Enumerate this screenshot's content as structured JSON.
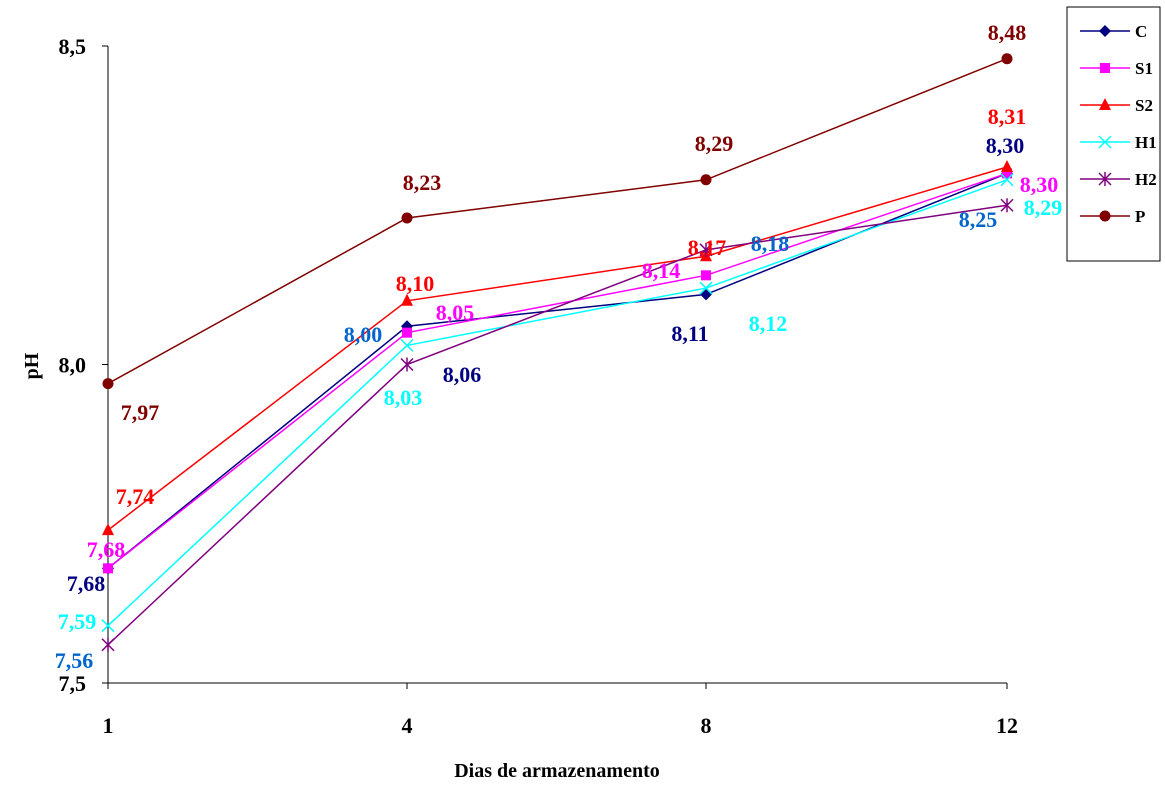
{
  "chart_data": {
    "type": "line",
    "title": "",
    "xlabel": "Dias de armazenamento",
    "ylabel": "pH",
    "categories": [
      "1",
      "4",
      "8",
      "12"
    ],
    "ylim": [
      7.5,
      8.5
    ],
    "yticks": [
      "7,5",
      "8,0",
      "8,5"
    ],
    "ytick_values": [
      7.5,
      8.0,
      8.5
    ],
    "grid": false,
    "legend_position": "top-right",
    "series": [
      {
        "name": "C",
        "color": "#000080",
        "marker": "diamond",
        "values": [
          7.68,
          8.06,
          8.11,
          8.3
        ]
      },
      {
        "name": "S1",
        "color": "#FF00FF",
        "marker": "square",
        "values": [
          7.68,
          8.05,
          8.14,
          8.3
        ]
      },
      {
        "name": "S2",
        "color": "#FF0000",
        "marker": "triangle",
        "values": [
          7.74,
          8.1,
          8.17,
          8.31
        ]
      },
      {
        "name": "H1",
        "color": "#00FFFF",
        "marker": "x",
        "values": [
          7.59,
          8.03,
          8.12,
          8.29
        ]
      },
      {
        "name": "H2",
        "color": "#800080",
        "marker": "asterisk",
        "values": [
          7.56,
          8.0,
          8.18,
          8.25
        ]
      },
      {
        "name": "P",
        "color": "#800000",
        "marker": "circle",
        "values": [
          7.97,
          8.23,
          8.29,
          8.48
        ]
      }
    ],
    "data_labels": [
      {
        "text": "7,97",
        "color": "#800000"
      },
      {
        "text": "7,74",
        "color": "#FF0000"
      },
      {
        "text": "7,68",
        "color": "#FF00FF"
      },
      {
        "text": "7,68",
        "color": "#000080"
      },
      {
        "text": "7,59",
        "color": "#00FFFF"
      },
      {
        "text": "7,56",
        "color": "#0066CC"
      },
      {
        "text": "8,23",
        "color": "#800000"
      },
      {
        "text": "8,10",
        "color": "#FF0000"
      },
      {
        "text": "8,05",
        "color": "#FF00FF"
      },
      {
        "text": "8,00",
        "color": "#0066CC"
      },
      {
        "text": "8,06",
        "color": "#000080"
      },
      {
        "text": "8,03",
        "color": "#00FFFF"
      },
      {
        "text": "8,29",
        "color": "#800000"
      },
      {
        "text": "8,17",
        "color": "#FF0000"
      },
      {
        "text": "8,18",
        "color": "#0066CC"
      },
      {
        "text": "8,14",
        "color": "#FF00FF"
      },
      {
        "text": "8,11",
        "color": "#000080"
      },
      {
        "text": "8,12",
        "color": "#00FFFF"
      },
      {
        "text": "8,48",
        "color": "#800000"
      },
      {
        "text": "8,31",
        "color": "#FF0000"
      },
      {
        "text": "8,30",
        "color": "#000080"
      },
      {
        "text": "8,30",
        "color": "#FF00FF"
      },
      {
        "text": "8,25",
        "color": "#0066CC"
      },
      {
        "text": "8,29",
        "color": "#00FFFF"
      }
    ]
  }
}
